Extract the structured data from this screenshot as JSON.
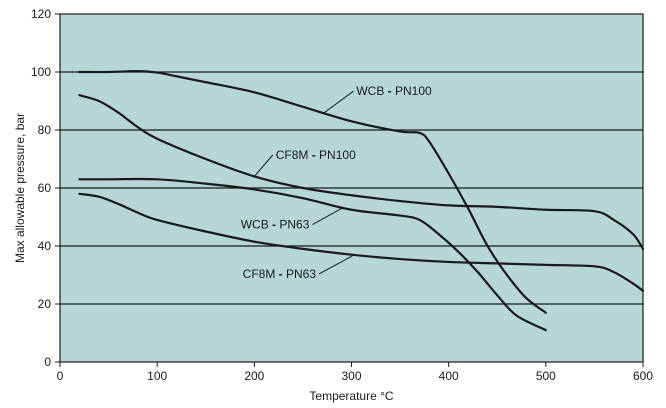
{
  "chart_data": {
    "type": "line",
    "title": "",
    "xlabel": "Temperature °C",
    "ylabel": "Max allowable pressure, bar",
    "xlim": [
      0,
      600
    ],
    "ylim": [
      0,
      120
    ],
    "x_ticks": [
      0,
      100,
      200,
      300,
      400,
      500,
      600
    ],
    "y_ticks": [
      0,
      20,
      40,
      60,
      80,
      100,
      120
    ],
    "grid": "horizontal",
    "legend": "inline labels",
    "colors": {
      "plot_background": "#b7d7d6",
      "line": "#1a1a1a",
      "grid": "#1a1a1a"
    },
    "series": [
      {
        "name": "WCB - PN100",
        "x": [
          20,
          50,
          80,
          100,
          120,
          150,
          200,
          250,
          300,
          350,
          370,
          380,
          400,
          420,
          440,
          460,
          480,
          500
        ],
        "y": [
          100,
          100,
          100.3,
          99.8,
          98.5,
          96.5,
          93,
          88,
          83,
          79.5,
          79,
          76,
          65,
          53,
          40,
          30,
          22,
          17
        ]
      },
      {
        "name": "CF8M - PN100",
        "x": [
          20,
          40,
          60,
          80,
          100,
          150,
          200,
          250,
          300,
          350,
          400,
          450,
          500,
          550,
          570,
          590,
          600
        ],
        "y": [
          92,
          90,
          86,
          81,
          77,
          70,
          64,
          60,
          57.5,
          55.5,
          54,
          53.5,
          52.5,
          52,
          49,
          44,
          39
        ]
      },
      {
        "name": "WCB - PN63",
        "x": [
          20,
          50,
          100,
          150,
          200,
          250,
          300,
          350,
          370,
          390,
          410,
          430,
          450,
          470,
          500
        ],
        "y": [
          63,
          63,
          63,
          61.5,
          59.5,
          56.5,
          52.5,
          50.5,
          49,
          44,
          38,
          31,
          23,
          16,
          11
        ]
      },
      {
        "name": "CF8M - PN63",
        "x": [
          20,
          40,
          60,
          80,
          100,
          150,
          200,
          250,
          300,
          350,
          400,
          450,
          500,
          550,
          570,
          590,
          600
        ],
        "y": [
          58,
          57,
          54.5,
          51.5,
          49,
          45,
          41.5,
          39,
          37,
          35.5,
          34.5,
          34,
          33.5,
          33,
          31,
          27,
          24.5
        ]
      }
    ],
    "labels": [
      {
        "series": "WCB - PN100",
        "part1": "WCB",
        "sep": " - ",
        "part2": "PN100",
        "at": [
          305,
          92
        ],
        "line_to": [
          272,
          86
        ]
      },
      {
        "series": "CF8M - PN100",
        "part1": "CF8M",
        "sep": " - ",
        "part2": "PN100",
        "at": [
          222,
          70
        ],
        "line_to": [
          200,
          64
        ]
      },
      {
        "series": "WCB - PN63",
        "part1": "WCB",
        "sep": " - ",
        "part2": "PN63",
        "at": [
          186,
          46
        ],
        "line_to": [
          290,
          53
        ]
      },
      {
        "series": "CF8M - PN63",
        "part1": "CF8M",
        "sep": " - ",
        "part2": "PN63",
        "at": [
          188,
          29
        ],
        "line_to": [
          302,
          36.8
        ]
      }
    ]
  }
}
